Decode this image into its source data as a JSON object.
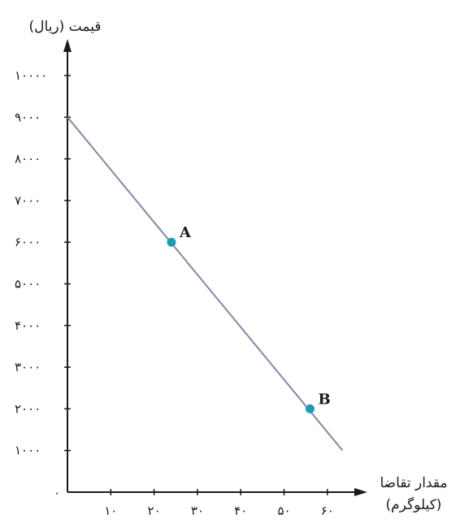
{
  "chart_data": {
    "type": "line",
    "ylabel": "قیمت (ریال)",
    "xlabel_line1": "مقدار تقاضا",
    "xlabel_line2": "(کیلوگرم)",
    "origin_label": "۰",
    "xlim": [
      0,
      65
    ],
    "ylim": [
      0,
      10500
    ],
    "x_ticks": [
      10,
      20,
      30,
      40,
      50,
      60
    ],
    "x_tick_labels": [
      "۱۰",
      "۲۰",
      "۳۰",
      "۴۰",
      "۵۰",
      "۶۰"
    ],
    "y_ticks": [
      1000,
      2000,
      3000,
      4000,
      5000,
      6000,
      7000,
      8000,
      9000,
      10000
    ],
    "y_tick_labels": [
      "۱۰۰۰",
      "۲۰۰۰",
      "۳۰۰۰",
      "۴۰۰۰",
      "۵۰۰۰",
      "۶۰۰۰",
      "۷۰۰۰",
      "۸۰۰۰",
      "۹۰۰۰",
      "۱۰۰۰۰"
    ],
    "line": {
      "x": [
        0,
        63.5
      ],
      "y": [
        9000,
        1000
      ]
    },
    "points": [
      {
        "label": "A",
        "x": 24,
        "y": 6000
      },
      {
        "label": "B",
        "x": 56,
        "y": 2000
      }
    ],
    "grid": false,
    "colors": {
      "line": "#8a84a8",
      "point": "#1a9fb0",
      "axis": "#1a1a1a"
    }
  }
}
